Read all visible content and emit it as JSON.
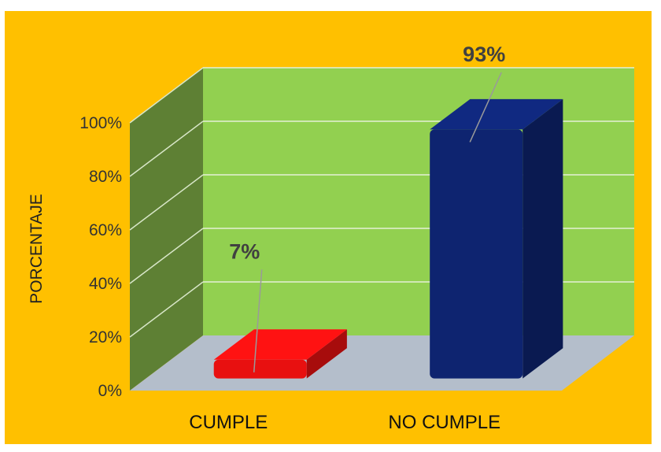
{
  "chart_data": {
    "type": "bar",
    "categories": [
      "CUMPLE",
      "NO CUMPLE"
    ],
    "values": [
      7,
      93
    ],
    "data_labels": [
      "7%",
      "93%"
    ],
    "title": "",
    "xlabel": "",
    "ylabel": "PORCENTAJE",
    "ylim": [
      0,
      100
    ],
    "yticks": [
      "0%",
      "20%",
      "40%",
      "60%",
      "80%",
      "100%"
    ],
    "grid": true,
    "legend": "none",
    "colors": {
      "background": "#FFC000",
      "back_wall": "#92D050",
      "side_wall": "#5E8034",
      "floor": "#B4BECB",
      "bars": [
        "#E81010",
        "#0E2470"
      ]
    }
  }
}
